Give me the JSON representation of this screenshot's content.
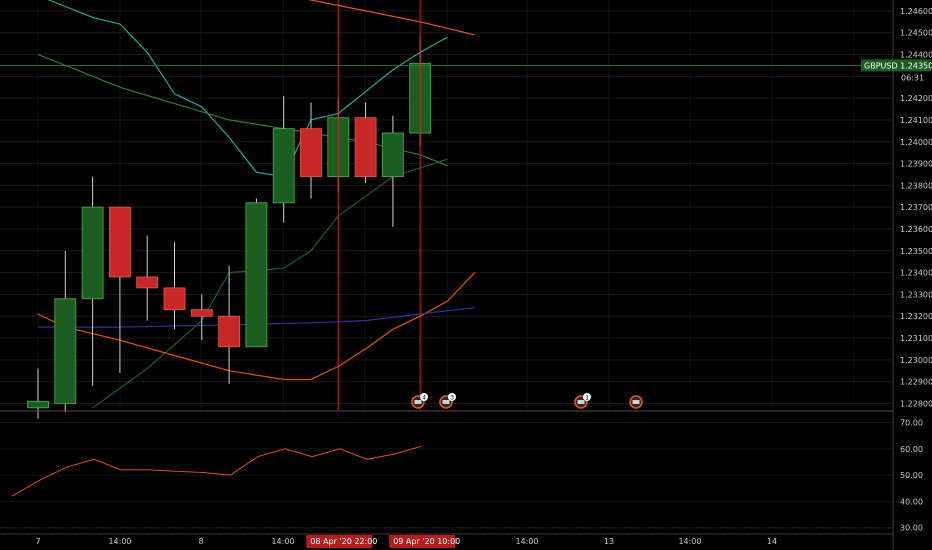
{
  "chart_data": [
    {
      "type": "candlestick",
      "symbol": "GBPUSD",
      "last_price": "1.24350",
      "countdown": "06:31",
      "y_ticks": [
        "1.24600",
        "1.24500",
        "1.24400",
        "1.24300",
        "1.24200",
        "1.24100",
        "1.24000",
        "1.23900",
        "1.23800",
        "1.23700",
        "1.23600",
        "1.23500",
        "1.23400",
        "1.23300",
        "1.23200",
        "1.23100",
        "1.23000",
        "1.22900",
        "1.22800"
      ],
      "ylim": [
        1.2277,
        1.2465
      ],
      "x_ticks": [
        "7",
        "14:00",
        "8",
        "14:00",
        "08 Apr '20",
        "22:00",
        "09 Apr '20",
        "10:00",
        "10",
        "14:00",
        "13",
        "14:00",
        "14"
      ],
      "crosshair_labels": [
        "08 Apr '20  22:00",
        "09 Apr '20  10:00"
      ],
      "candles": [
        {
          "o": 1.2278,
          "h": 1.2296,
          "l": 1.2273,
          "c": 1.2281
        },
        {
          "o": 1.228,
          "h": 1.235,
          "l": 1.2276,
          "c": 1.2328
        },
        {
          "o": 1.2328,
          "h": 1.2384,
          "l": 1.2288,
          "c": 1.237
        },
        {
          "o": 1.237,
          "h": 1.237,
          "l": 1.2294,
          "c": 1.2338
        },
        {
          "o": 1.2338,
          "h": 1.2357,
          "l": 1.2318,
          "c": 1.2333
        },
        {
          "o": 1.2333,
          "h": 1.2354,
          "l": 1.2314,
          "c": 1.2323
        },
        {
          "o": 1.2323,
          "h": 1.233,
          "l": 1.2309,
          "c": 1.232
        },
        {
          "o": 1.232,
          "h": 1.2343,
          "l": 1.2289,
          "c": 1.2306
        },
        {
          "o": 1.2306,
          "h": 1.2374,
          "l": 1.2306,
          "c": 1.2372
        },
        {
          "o": 1.2372,
          "h": 1.2421,
          "l": 1.2363,
          "c": 1.2406
        },
        {
          "o": 1.2406,
          "h": 1.2418,
          "l": 1.2374,
          "c": 1.2384
        },
        {
          "o": 1.2384,
          "h": 1.242,
          "l": 1.2377,
          "c": 1.2411
        },
        {
          "o": 1.2411,
          "h": 1.2418,
          "l": 1.2381,
          "c": 1.2384
        },
        {
          "o": 1.2384,
          "h": 1.2412,
          "l": 1.2361,
          "c": 1.2404
        },
        {
          "o": 1.2404,
          "h": 1.2448,
          "l": 1.2398,
          "c": 1.2436
        }
      ],
      "lines": [
        {
          "color": "#26a69a",
          "points": [
            [
              0,
              1.2467
            ],
            [
              1,
              1.2462
            ],
            [
              2,
              1.2457
            ],
            [
              3,
              1.2454
            ],
            [
              4,
              1.2441
            ],
            [
              5,
              1.2422
            ],
            [
              6,
              1.2416
            ],
            [
              7,
              1.2402
            ],
            [
              8,
              1.2386
            ],
            [
              9,
              1.2384
            ],
            [
              10,
              1.241
            ],
            [
              11,
              1.2413
            ],
            [
              12,
              1.2423
            ],
            [
              13,
              1.2433
            ],
            [
              14,
              1.2441
            ],
            [
              15,
              1.2448
            ]
          ]
        },
        {
          "color": "#2e7d32",
          "points": [
            [
              0,
              1.244
            ],
            [
              3,
              1.2425
            ],
            [
              7,
              1.241
            ],
            [
              10,
              1.2404
            ],
            [
              12,
              1.24
            ],
            [
              14,
              1.2394
            ],
            [
              15,
              1.2389
            ]
          ]
        },
        {
          "color": "#1b5e20",
          "points": [
            [
              2,
              1.2278
            ],
            [
              4,
              1.2296
            ],
            [
              6,
              1.2318
            ],
            [
              7,
              1.234
            ],
            [
              9,
              1.2342
            ],
            [
              10,
              1.235
            ],
            [
              11,
              1.2366
            ],
            [
              13,
              1.2384
            ],
            [
              15,
              1.2392
            ]
          ]
        },
        {
          "color": "#e65100",
          "points": [
            [
              0,
              1.2321
            ],
            [
              1,
              1.2315
            ],
            [
              3,
              1.2309
            ],
            [
              5,
              1.2302
            ],
            [
              7,
              1.2295
            ],
            [
              9,
              1.2291
            ],
            [
              10,
              1.2291
            ],
            [
              11,
              1.2297
            ],
            [
              12,
              1.2305
            ],
            [
              13,
              1.2314
            ],
            [
              14,
              1.232
            ],
            [
              15,
              1.2327
            ],
            [
              16,
              1.234
            ]
          ]
        },
        {
          "color": "#283593",
          "points": [
            [
              0,
              1.2315
            ],
            [
              3,
              1.2315
            ],
            [
              7,
              1.2316
            ],
            [
              10,
              1.2317
            ],
            [
              12,
              1.2318
            ],
            [
              14,
              1.2321
            ],
            [
              16,
              1.2324
            ]
          ]
        },
        {
          "color": "#e5532a",
          "points": [
            [
              8,
              1.247
            ],
            [
              10,
              1.2465
            ],
            [
              12,
              1.246
            ],
            [
              14,
              1.2455
            ],
            [
              16,
              1.2449
            ]
          ]
        }
      ],
      "events": [
        "4",
        "3",
        "1",
        ""
      ],
      "indicator": {
        "y_ticks": [
          "70.00",
          "60.00",
          "50.00",
          "40.00",
          "30.00"
        ],
        "ylim": [
          28,
          74
        ],
        "levels": [
          70,
          30
        ],
        "values": [
          42,
          48,
          53,
          56,
          52,
          52,
          51.5,
          51,
          50,
          57,
          60,
          57,
          60,
          56,
          58,
          61
        ]
      }
    }
  ]
}
